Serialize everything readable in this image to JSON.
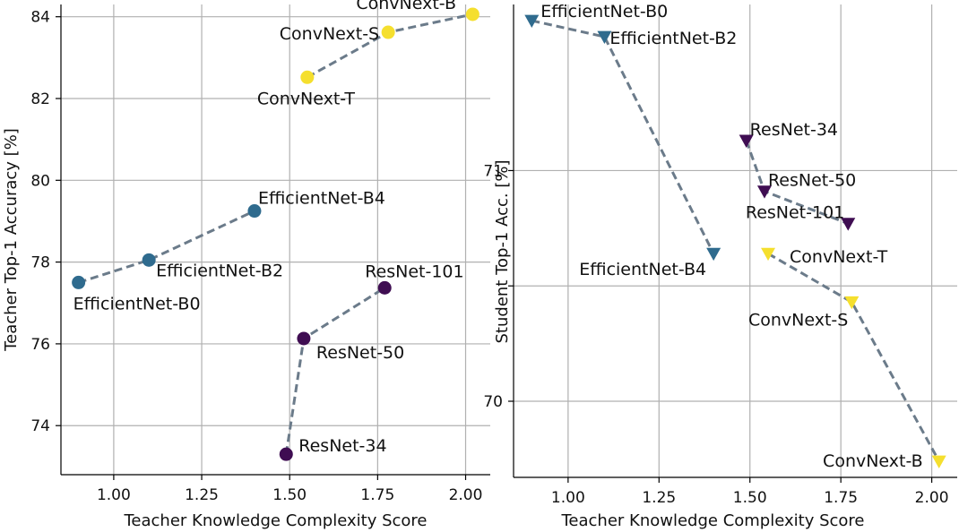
{
  "chart_data": [
    {
      "type": "scatter",
      "xlabel": "Teacher Knowledge Complexity Score",
      "ylabel": "Teacher Top-1 Accuracy [%]",
      "xlim": [
        0.85,
        2.07
      ],
      "ylim": [
        72.8,
        84.3
      ],
      "xticks": [
        1.0,
        1.25,
        1.5,
        1.75,
        2.0
      ],
      "xtick_labels": [
        "1.00",
        "1.25",
        "1.50",
        "1.75",
        "2.00"
      ],
      "yticks": [
        74,
        76,
        78,
        80,
        82,
        84
      ],
      "ytick_labels": [
        "74",
        "76",
        "78",
        "80",
        "82",
        "84"
      ],
      "marker": "circle",
      "grid": true,
      "series": [
        {
          "color": "#2f6b8e",
          "points": [
            {
              "label": "EfficientNet-B0",
              "x": 0.9,
              "y": 77.5
            },
            {
              "label": "EfficientNet-B2",
              "x": 1.1,
              "y": 78.05
            },
            {
              "label": "EfficientNet-B4",
              "x": 1.4,
              "y": 79.25
            }
          ]
        },
        {
          "color": "#3f0d52",
          "points": [
            {
              "label": "ResNet-34",
              "x": 1.49,
              "y": 73.3
            },
            {
              "label": "ResNet-50",
              "x": 1.54,
              "y": 76.13
            },
            {
              "label": "ResNet-101",
              "x": 1.77,
              "y": 77.37
            }
          ]
        },
        {
          "color": "#f5df2e",
          "points": [
            {
              "label": "ConvNext-T",
              "x": 1.55,
              "y": 82.52
            },
            {
              "label": "ConvNext-S",
              "x": 1.78,
              "y": 83.62
            },
            {
              "label": "ConvNext-B",
              "x": 2.02,
              "y": 84.06
            }
          ]
        }
      ]
    },
    {
      "type": "scatter",
      "xlabel": "Teacher Knowledge Complexity Score",
      "ylabel": "Student Top-1 Acc. [%]",
      "xlim": [
        0.85,
        2.07
      ],
      "ylim": [
        69.67,
        71.72
      ],
      "xticks": [
        1.0,
        1.25,
        1.5,
        1.75,
        2.0
      ],
      "xtick_labels": [
        "1.00",
        "1.25",
        "1.50",
        "1.75",
        "2.00"
      ],
      "yticks": [
        70,
        70.5,
        71
      ],
      "ytick_labels": [
        "70",
        "",
        "71"
      ],
      "marker": "triangle-down",
      "grid": true,
      "series": [
        {
          "color": "#2f6b8e",
          "points": [
            {
              "label": "EfficientNet-B0",
              "x": 0.9,
              "y": 71.65
            },
            {
              "label": "EfficientNet-B2",
              "x": 1.1,
              "y": 71.58
            },
            {
              "label": "EfficientNet-B4",
              "x": 1.4,
              "y": 70.64
            }
          ]
        },
        {
          "color": "#3f0d52",
          "points": [
            {
              "label": "ResNet-34",
              "x": 1.49,
              "y": 71.13
            },
            {
              "label": "ResNet-50",
              "x": 1.54,
              "y": 70.91
            },
            {
              "label": "ResNet-101",
              "x": 1.77,
              "y": 70.77
            }
          ]
        },
        {
          "color": "#f5df2e",
          "points": [
            {
              "label": "ConvNext-T",
              "x": 1.55,
              "y": 70.64
            },
            {
              "label": "ConvNext-S",
              "x": 1.78,
              "y": 70.43
            },
            {
              "label": "ConvNext-B",
              "x": 2.02,
              "y": 69.74
            }
          ]
        }
      ]
    }
  ]
}
